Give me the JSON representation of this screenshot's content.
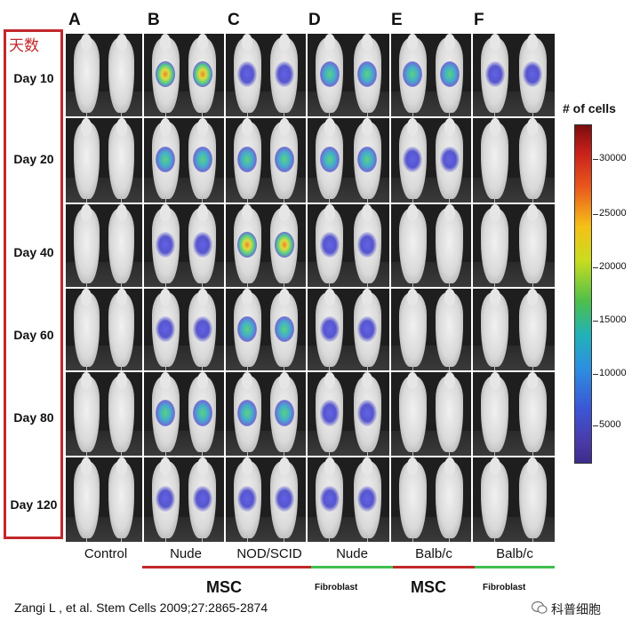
{
  "panels": [
    "A",
    "B",
    "C",
    "D",
    "E",
    "F"
  ],
  "day_header_cn": "天数",
  "days": [
    "Day 10",
    "Day 20",
    "Day 40",
    "Day 60",
    "Day 80",
    "Day 120"
  ],
  "groups": [
    "Control",
    "Nude",
    "NOD/SCID",
    "Nude",
    "Balb/c",
    "Balb/c"
  ],
  "cell_types": {
    "msc_1": "MSC",
    "fibroblast_1": "Fibroblast",
    "msc_2": "MSC",
    "fibroblast_2": "Fibroblast"
  },
  "colorbar": {
    "title": "# of cells",
    "ticks": [
      "30000",
      "25000",
      "20000",
      "15000",
      "10000",
      "5000"
    ]
  },
  "citation": "Zangi L , et al. Stem Cells 2009;27:2865-2874",
  "watermark": "科普细胞",
  "colors": {
    "accent_red": "#c2282c",
    "accent_green": "#3fbf4f"
  }
}
